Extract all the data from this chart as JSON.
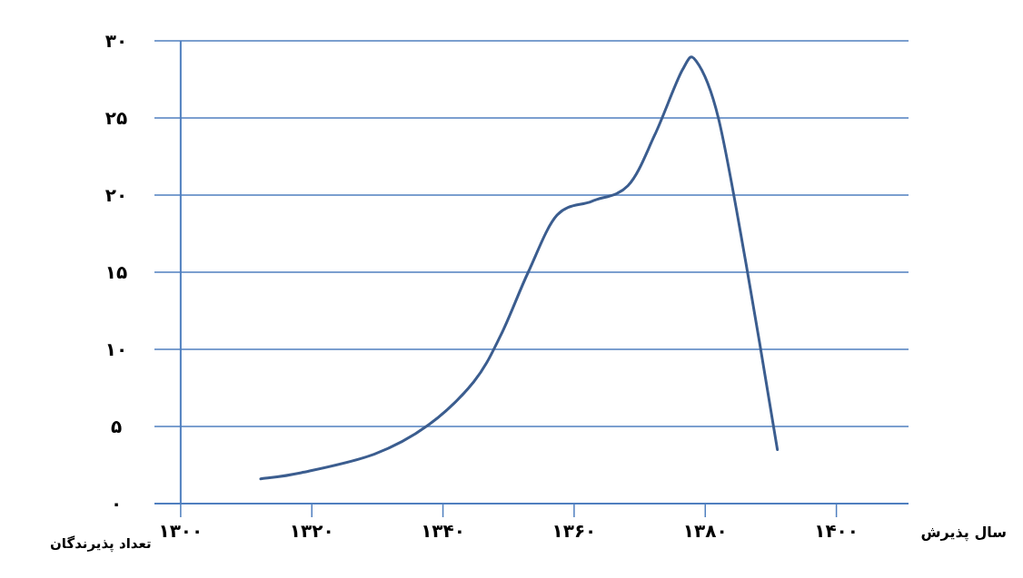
{
  "chart_data": {
    "type": "line",
    "xlabel": "سال پذیرش",
    "ylabel": "تعداد پذیرندگان",
    "x": [
      1312.2,
      1318.4,
      1329.5,
      1337.8,
      1344.7,
      1348.8,
      1353.0,
      1357.4,
      1362.7,
      1368.2,
      1372.3,
      1376.5,
      1378.6,
      1382.0,
      1386.2,
      1391.0
    ],
    "series": [
      {
        "color": "#3b5d8f",
        "values": [
          1.6,
          2.0,
          3.2,
          5.1,
          7.9,
          10.9,
          15.0,
          18.7,
          19.6,
          20.6,
          23.9,
          28.1,
          28.7,
          25.0,
          15.6,
          3.5
        ]
      }
    ],
    "xlim": [
      1296,
      1411
    ],
    "ylim": [
      0,
      30
    ],
    "xticks": [
      {
        "value": 1300,
        "label": "۱۳۰۰"
      },
      {
        "value": 1320,
        "label": "۱۳۲۰"
      },
      {
        "value": 1340,
        "label": "۱۳۴۰"
      },
      {
        "value": 1360,
        "label": "۱۳۶۰"
      },
      {
        "value": 1380,
        "label": "۱۳۸۰"
      },
      {
        "value": 1400,
        "label": "۱۴۰۰"
      }
    ],
    "yticks": [
      {
        "value": 0,
        "label": "۰"
      },
      {
        "value": 5,
        "label": "۵"
      },
      {
        "value": 10,
        "label": "۱۰"
      },
      {
        "value": 15,
        "label": "۱۵"
      },
      {
        "value": 20,
        "label": "۲۰"
      },
      {
        "value": 25,
        "label": "۲۵"
      },
      {
        "value": 30,
        "label": "۳۰"
      }
    ],
    "ref_lines": [
      {
        "axis": "x",
        "value": 1300,
        "color": "#4f7fbf"
      }
    ],
    "grid": "y",
    "marker": "none",
    "line_style": "solid"
  }
}
